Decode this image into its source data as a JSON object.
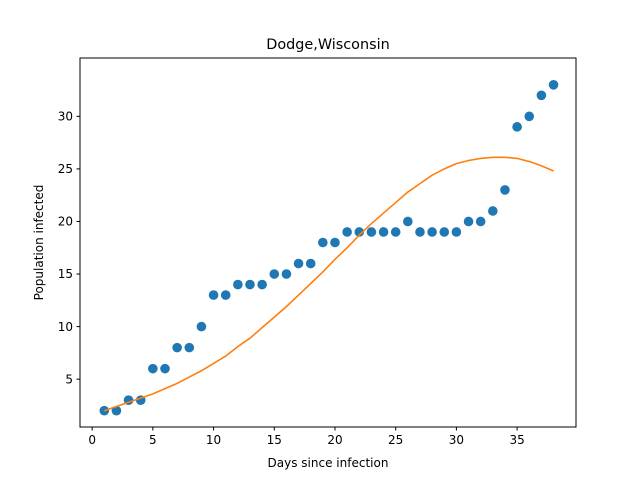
{
  "chart_data": {
    "type": "scatter",
    "title": "Dodge,Wisconsin",
    "xlabel": "Days since infection",
    "ylabel": "Population infected",
    "xlim": [
      -1,
      39.85
    ],
    "ylim": [
      0.45,
      35.55
    ],
    "xticks": [
      0,
      5,
      10,
      15,
      20,
      25,
      30,
      35
    ],
    "yticks": [
      5,
      10,
      15,
      20,
      25,
      30
    ],
    "grid": false,
    "series": [
      {
        "kind": "scatter",
        "color": "#1f77b4",
        "x": [
          1,
          2,
          3,
          4,
          5,
          6,
          7,
          8,
          9,
          10,
          11,
          12,
          13,
          14,
          15,
          16,
          17,
          18,
          19,
          20,
          21,
          22,
          23,
          24,
          25,
          26,
          27,
          28,
          29,
          30,
          31,
          32,
          33,
          34,
          35,
          36,
          37,
          38
        ],
        "y": [
          2,
          2,
          3,
          3,
          6,
          6,
          8,
          8,
          10,
          13,
          13,
          14,
          14,
          14,
          15,
          15,
          16,
          16,
          18,
          18,
          19,
          19,
          19,
          19,
          19,
          20,
          19,
          19,
          19,
          19,
          20,
          20,
          21,
          23,
          29,
          30,
          32,
          33
        ]
      },
      {
        "kind": "line",
        "color": "#ff7f0e",
        "x": [
          1,
          2,
          3,
          4,
          5,
          6,
          7,
          8,
          9,
          10,
          11,
          12,
          13,
          14,
          15,
          16,
          17,
          18,
          19,
          20,
          21,
          22,
          23,
          24,
          25,
          26,
          27,
          28,
          29,
          30,
          31,
          32,
          33,
          34,
          35,
          36,
          37,
          38
        ],
        "y": [
          2.0,
          2.4,
          2.8,
          3.2,
          3.6,
          4.1,
          4.6,
          5.2,
          5.8,
          6.5,
          7.2,
          8.1,
          8.9,
          9.9,
          10.9,
          11.9,
          13.0,
          14.1,
          15.2,
          16.4,
          17.5,
          18.7,
          19.8,
          20.8,
          21.8,
          22.8,
          23.6,
          24.4,
          25.0,
          25.5,
          25.8,
          26.0,
          26.1,
          26.1,
          26.0,
          25.7,
          25.3,
          24.8
        ]
      }
    ]
  }
}
